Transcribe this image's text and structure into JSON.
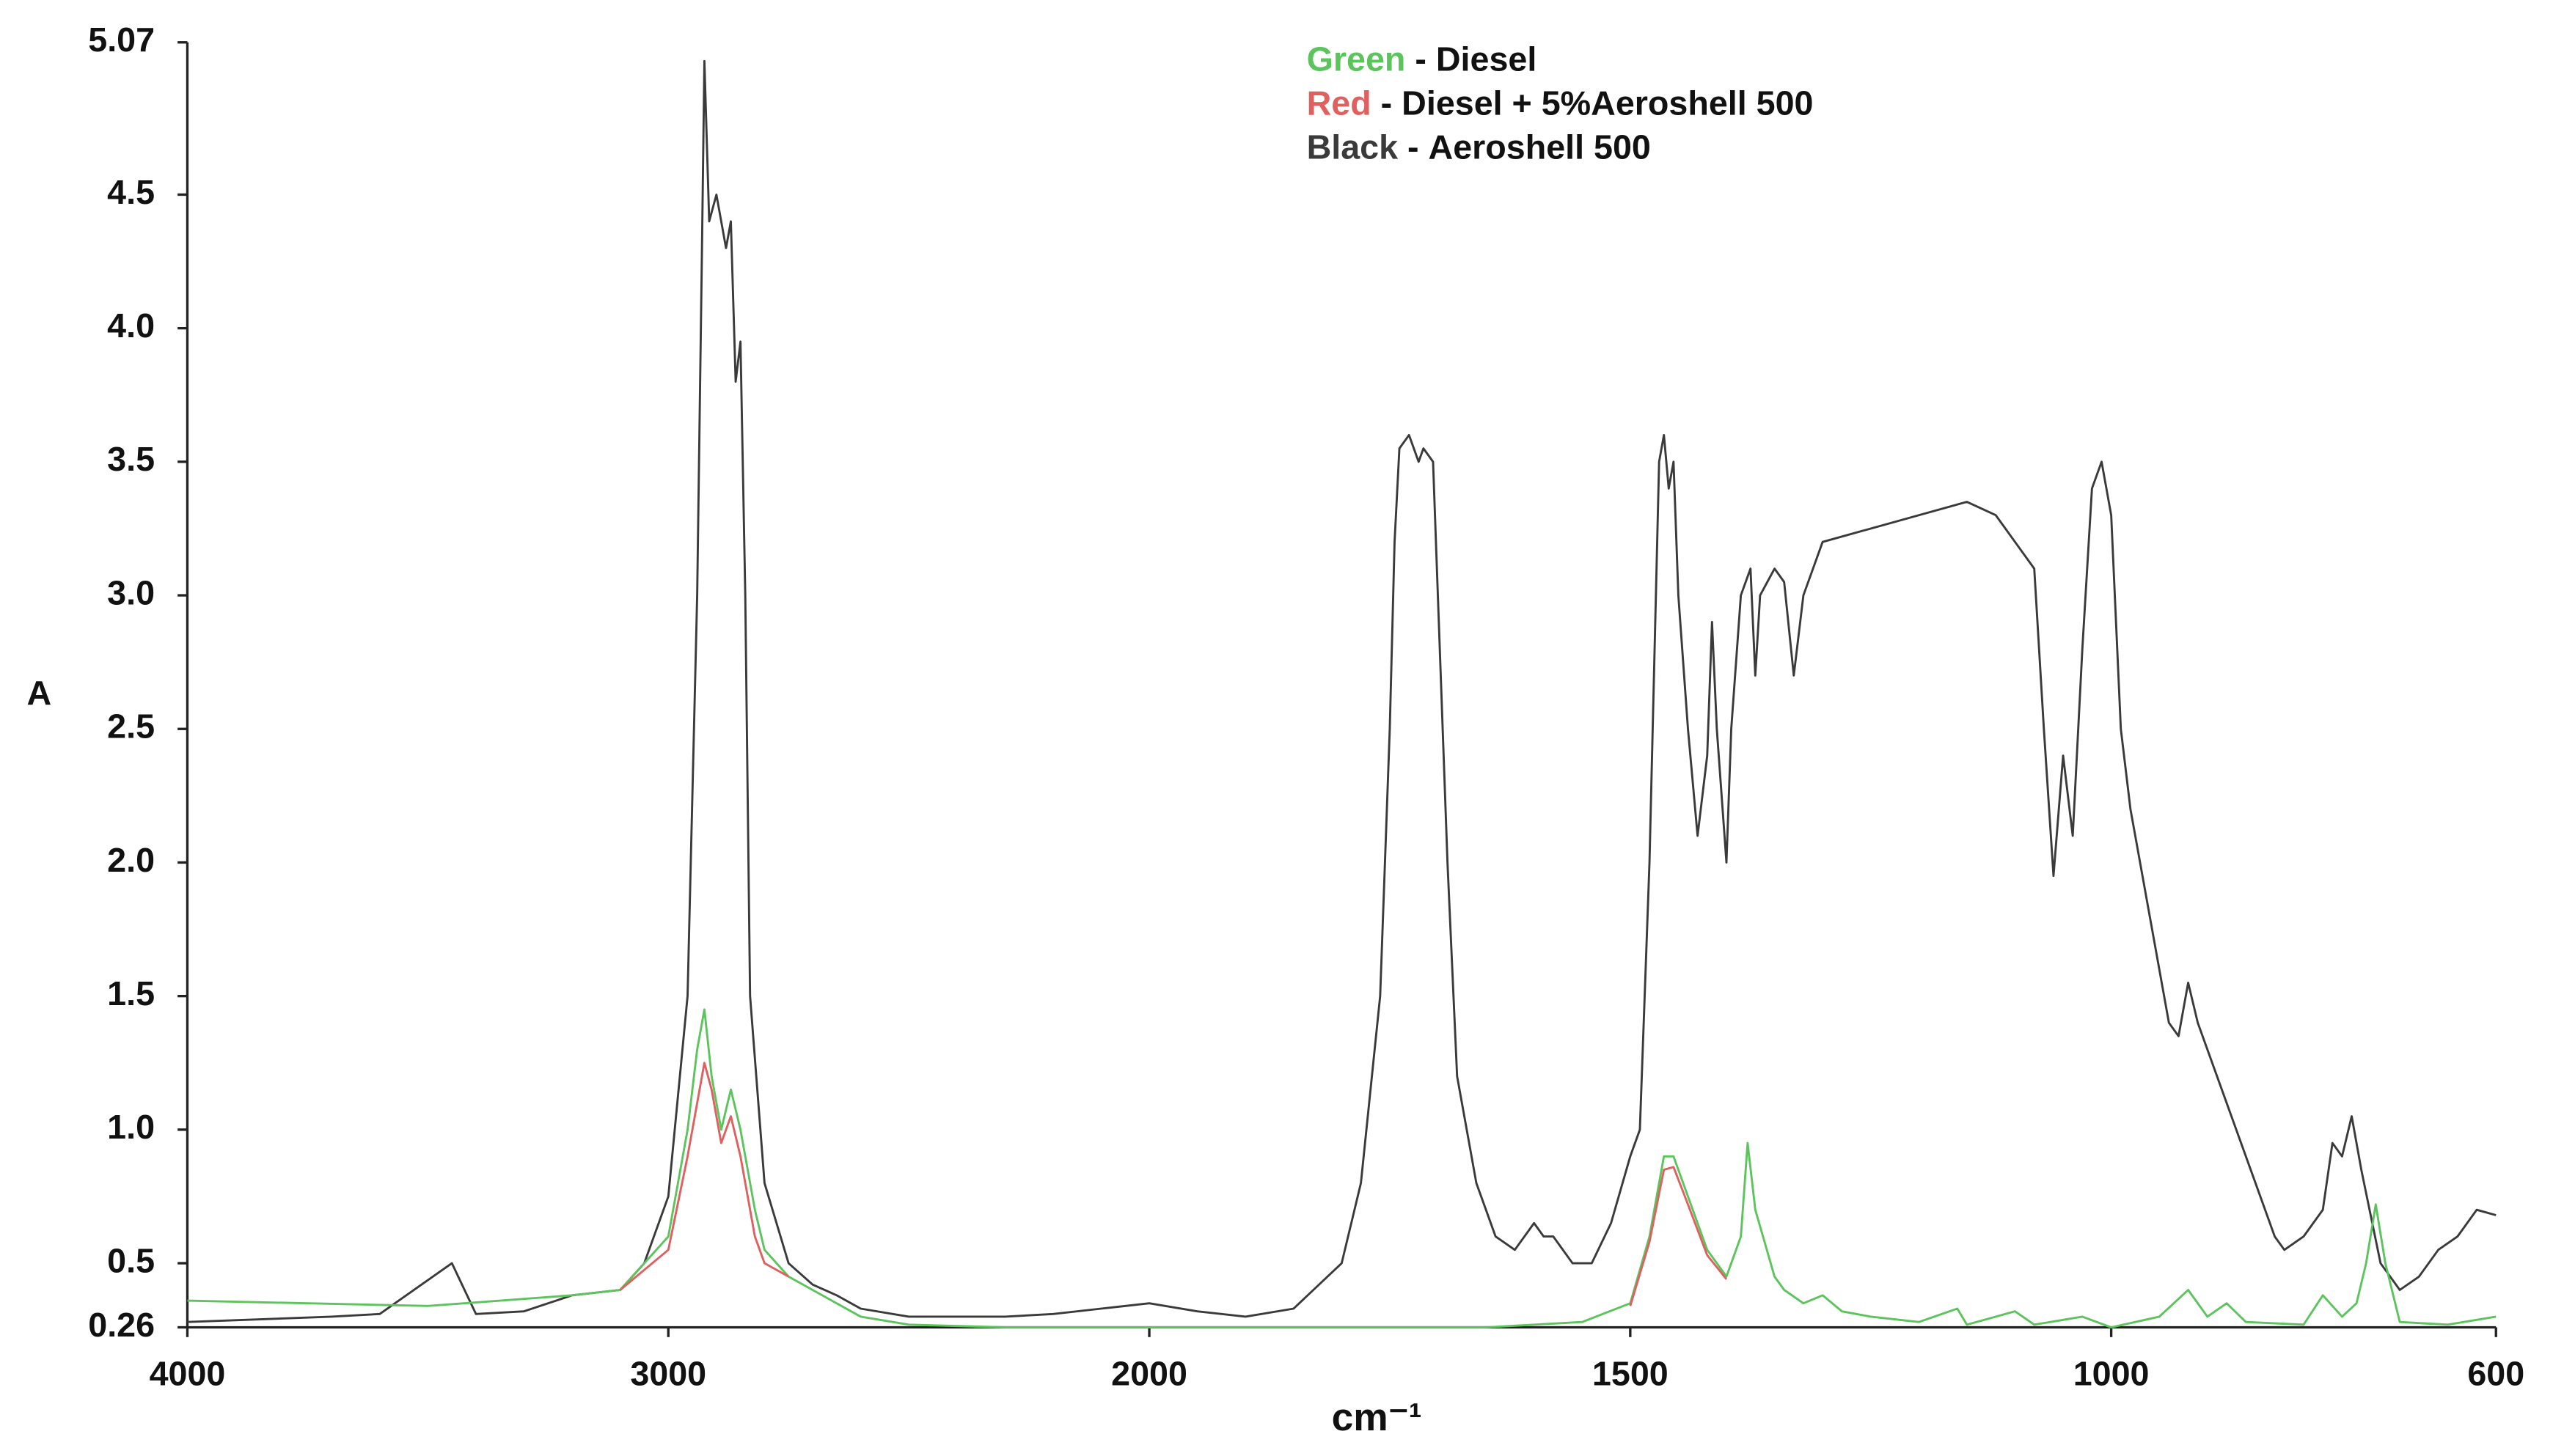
{
  "chart_data": {
    "type": "line",
    "x_label": "cm⁻¹",
    "y_label": "A",
    "xlim": [
      4000,
      600
    ],
    "xticks": [
      4000,
      3000,
      2000,
      1500,
      1000,
      600
    ],
    "x_expand_below": 2000,
    "ylim": [
      0.26,
      5.07
    ],
    "yticks": [
      0.26,
      0.5,
      {
        "value": 1,
        "label": "1.0"
      },
      1.5,
      {
        "value": 2,
        "label": "2.0"
      },
      2.5,
      {
        "value": 3,
        "label": "3.0"
      },
      3.5,
      {
        "value": 4,
        "label": "4.0"
      },
      4.5,
      5.07
    ],
    "grid": false,
    "legend_separator": " - ",
    "series": [
      {
        "name": "Aeroshell 500",
        "legend_prefix": "Black",
        "color": "#3a3a3a",
        "x": [
          4000,
          3700,
          3600,
          3450,
          3400,
          3300,
          3200,
          3100,
          3050,
          3000,
          2960,
          2940,
          2930,
          2925,
          2915,
          2900,
          2880,
          2870,
          2860,
          2850,
          2840,
          2830,
          2800,
          2750,
          2700,
          2650,
          2600,
          2500,
          2300,
          2200,
          2100,
          2000,
          1950,
          1900,
          1850,
          1800,
          1780,
          1760,
          1750,
          1745,
          1740,
          1730,
          1720,
          1715,
          1705,
          1700,
          1690,
          1680,
          1660,
          1640,
          1620,
          1600,
          1590,
          1580,
          1560,
          1540,
          1520,
          1500,
          1490,
          1480,
          1470,
          1465,
          1460,
          1455,
          1450,
          1440,
          1430,
          1420,
          1415,
          1410,
          1400,
          1395,
          1385,
          1375,
          1370,
          1365,
          1350,
          1340,
          1330,
          1320,
          1300,
          1250,
          1200,
          1150,
          1120,
          1100,
          1080,
          1070,
          1060,
          1050,
          1040,
          1030,
          1020,
          1010,
          1000,
          990,
          980,
          960,
          940,
          930,
          920,
          910,
          890,
          870,
          850,
          830,
          820,
          800,
          780,
          770,
          760,
          750,
          740,
          720,
          700,
          680,
          660,
          640,
          620,
          600
        ],
        "values": [
          0.28,
          0.3,
          0.31,
          0.5,
          0.31,
          0.32,
          0.38,
          0.4,
          0.5,
          0.75,
          1.5,
          3.0,
          4.3,
          5.0,
          4.4,
          4.5,
          4.3,
          4.4,
          3.8,
          3.95,
          3.0,
          1.5,
          0.8,
          0.5,
          0.42,
          0.38,
          0.33,
          0.3,
          0.3,
          0.31,
          0.33,
          0.35,
          0.32,
          0.3,
          0.33,
          0.5,
          0.8,
          1.5,
          2.5,
          3.2,
          3.55,
          3.6,
          3.5,
          3.55,
          3.5,
          3.0,
          2.0,
          1.2,
          0.8,
          0.6,
          0.55,
          0.65,
          0.6,
          0.6,
          0.5,
          0.5,
          0.65,
          0.9,
          1.0,
          2.0,
          3.5,
          3.6,
          3.4,
          3.5,
          3.0,
          2.5,
          2.1,
          2.4,
          2.9,
          2.5,
          2.0,
          2.5,
          3.0,
          3.1,
          2.7,
          3.0,
          3.1,
          3.05,
          2.7,
          3.0,
          3.2,
          3.25,
          3.3,
          3.35,
          3.3,
          3.2,
          3.1,
          2.5,
          1.95,
          2.4,
          2.1,
          2.8,
          3.4,
          3.5,
          3.3,
          2.5,
          2.2,
          1.8,
          1.4,
          1.35,
          1.55,
          1.4,
          1.2,
          1.0,
          0.8,
          0.6,
          0.55,
          0.6,
          0.7,
          0.95,
          0.9,
          1.05,
          0.85,
          0.5,
          0.4,
          0.45,
          0.55,
          0.6,
          0.7,
          0.68
        ]
      },
      {
        "name": "Diesel",
        "legend_prefix": "Green",
        "color": "#5cc45c",
        "x": [
          4000,
          3500,
          3200,
          3100,
          3000,
          2960,
          2940,
          2925,
          2910,
          2890,
          2870,
          2850,
          2820,
          2800,
          2750,
          2700,
          2650,
          2600,
          2500,
          2300,
          1650,
          1550,
          1500,
          1480,
          1465,
          1455,
          1440,
          1420,
          1400,
          1385,
          1378,
          1370,
          1350,
          1340,
          1320,
          1300,
          1280,
          1250,
          1200,
          1160,
          1150,
          1100,
          1080,
          1030,
          1000,
          950,
          920,
          900,
          880,
          860,
          800,
          780,
          760,
          745,
          735,
          725,
          715,
          700,
          650,
          600
        ],
        "values": [
          0.36,
          0.34,
          0.38,
          0.4,
          0.6,
          1.0,
          1.3,
          1.45,
          1.2,
          1.0,
          1.15,
          1.0,
          0.7,
          0.55,
          0.45,
          0.4,
          0.35,
          0.3,
          0.27,
          0.26,
          0.26,
          0.28,
          0.35,
          0.6,
          0.9,
          0.9,
          0.75,
          0.55,
          0.45,
          0.6,
          0.95,
          0.7,
          0.45,
          0.4,
          0.35,
          0.38,
          0.32,
          0.3,
          0.28,
          0.33,
          0.27,
          0.32,
          0.27,
          0.3,
          0.26,
          0.3,
          0.4,
          0.3,
          0.35,
          0.28,
          0.27,
          0.38,
          0.3,
          0.35,
          0.5,
          0.72,
          0.5,
          0.28,
          0.27,
          0.3
        ]
      },
      {
        "name": "Diesel + 5%Aeroshell 500",
        "legend_prefix": "Red",
        "color": "#e06060",
        "x": [
          3100,
          3000,
          2960,
          2940,
          2925,
          2910,
          2890,
          2870,
          2850,
          2820,
          2800,
          2750,
          null,
          1500,
          1480,
          1465,
          1455,
          1440,
          1420,
          1400
        ],
        "values": [
          0.4,
          0.55,
          0.9,
          1.1,
          1.25,
          1.15,
          0.95,
          1.05,
          0.9,
          0.6,
          0.5,
          0.45,
          null,
          0.34,
          0.58,
          0.85,
          0.86,
          0.72,
          0.53,
          0.44
        ]
      }
    ]
  }
}
